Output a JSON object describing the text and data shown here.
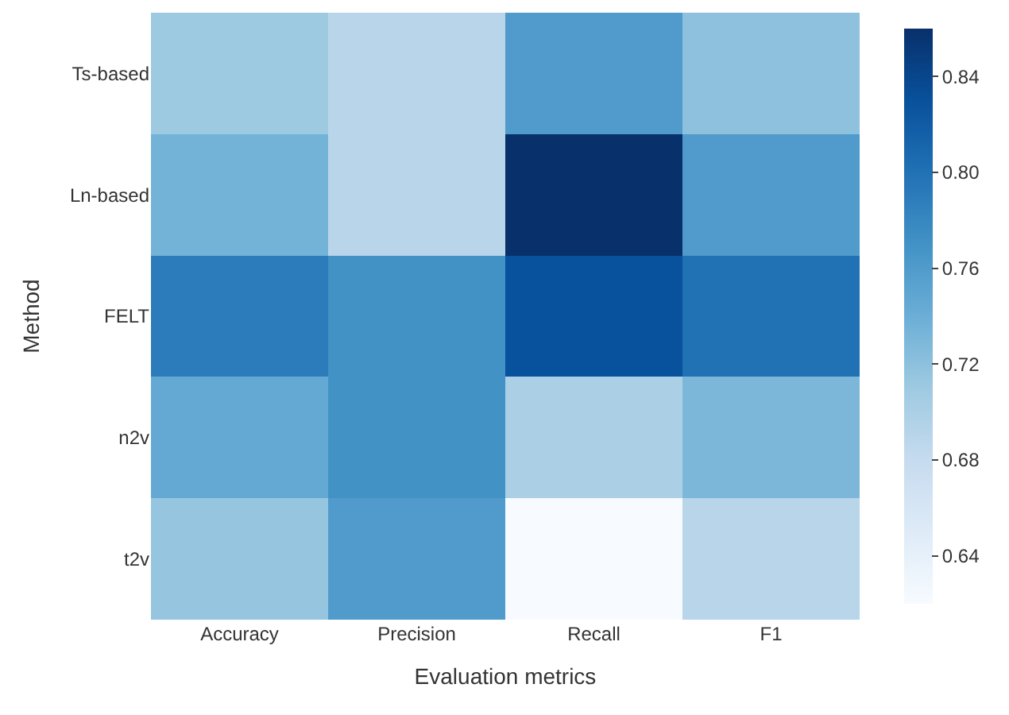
{
  "chart_data": {
    "type": "heatmap",
    "xlabel": "Evaluation metrics",
    "ylabel": "Method",
    "categories": [
      "Accuracy",
      "Precision",
      "Recall",
      "F1"
    ],
    "y_categories": [
      "Ts-based",
      "Ln-based",
      "FELT",
      "n2v",
      "t2v"
    ],
    "cells": [
      [
        0.71,
        0.69,
        0.76,
        0.72
      ],
      [
        0.735,
        0.69,
        0.86,
        0.76
      ],
      [
        0.79,
        0.77,
        0.83,
        0.8
      ],
      [
        0.745,
        0.77,
        0.7,
        0.73
      ],
      [
        0.715,
        0.76,
        0.62,
        0.69
      ]
    ],
    "clim": [
      0.62,
      0.86
    ],
    "cticks": [
      0.64,
      0.68,
      0.72,
      0.76,
      {
        "value": 0.8,
        "label": "0.80"
      },
      0.84
    ]
  }
}
